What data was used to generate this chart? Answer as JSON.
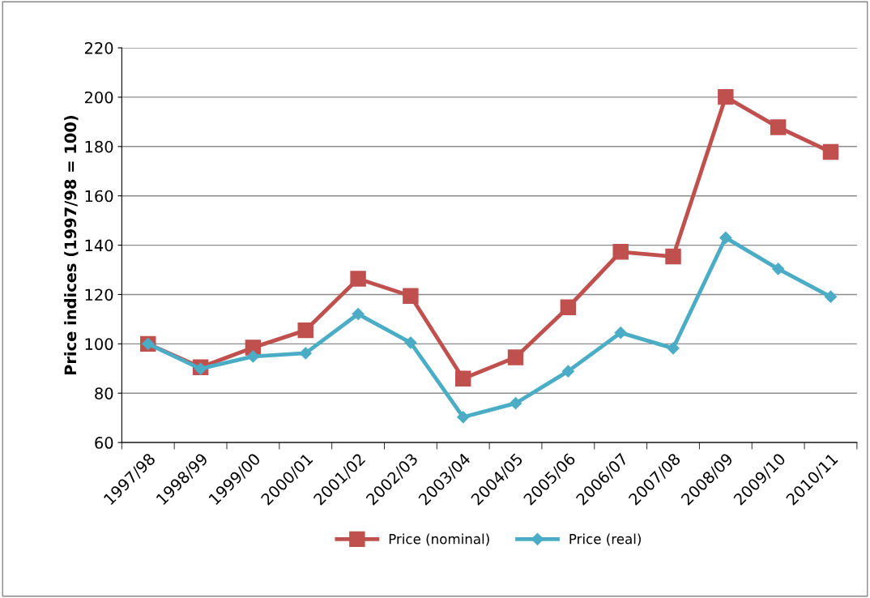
{
  "chart_data": {
    "type": "line",
    "ylabel": "Price indices (1997/98 = 100)",
    "categories": [
      "1997/98",
      "1998/99",
      "1999/00",
      "2000/01",
      "2001/02",
      "2002/03",
      "2003/04",
      "2004/05",
      "2005/06",
      "2006/07",
      "2007/08",
      "2008/09",
      "2009/10",
      "2010/11"
    ],
    "series": [
      {
        "name": "Price (nominal)",
        "color": "#c0504d",
        "marker": "square",
        "values": [
          100,
          90.5,
          98.5,
          105.5,
          126.4,
          119.4,
          85.9,
          94.5,
          114.8,
          137.3,
          135.4,
          200.1,
          187.8,
          177.8
        ]
      },
      {
        "name": "Price (real)",
        "color": "#4bacc6",
        "marker": "diamond",
        "values": [
          100,
          89.9,
          94.9,
          96.2,
          112.1,
          100.5,
          70.3,
          75.9,
          88.9,
          104.5,
          98.2,
          143,
          130.4,
          119.1
        ]
      }
    ],
    "ylim": [
      60,
      220
    ],
    "yticks": [
      60,
      80,
      100,
      120,
      140,
      160,
      180,
      200,
      220
    ],
    "grid": "y",
    "legend": "bottom",
    "line_style": "solid"
  }
}
